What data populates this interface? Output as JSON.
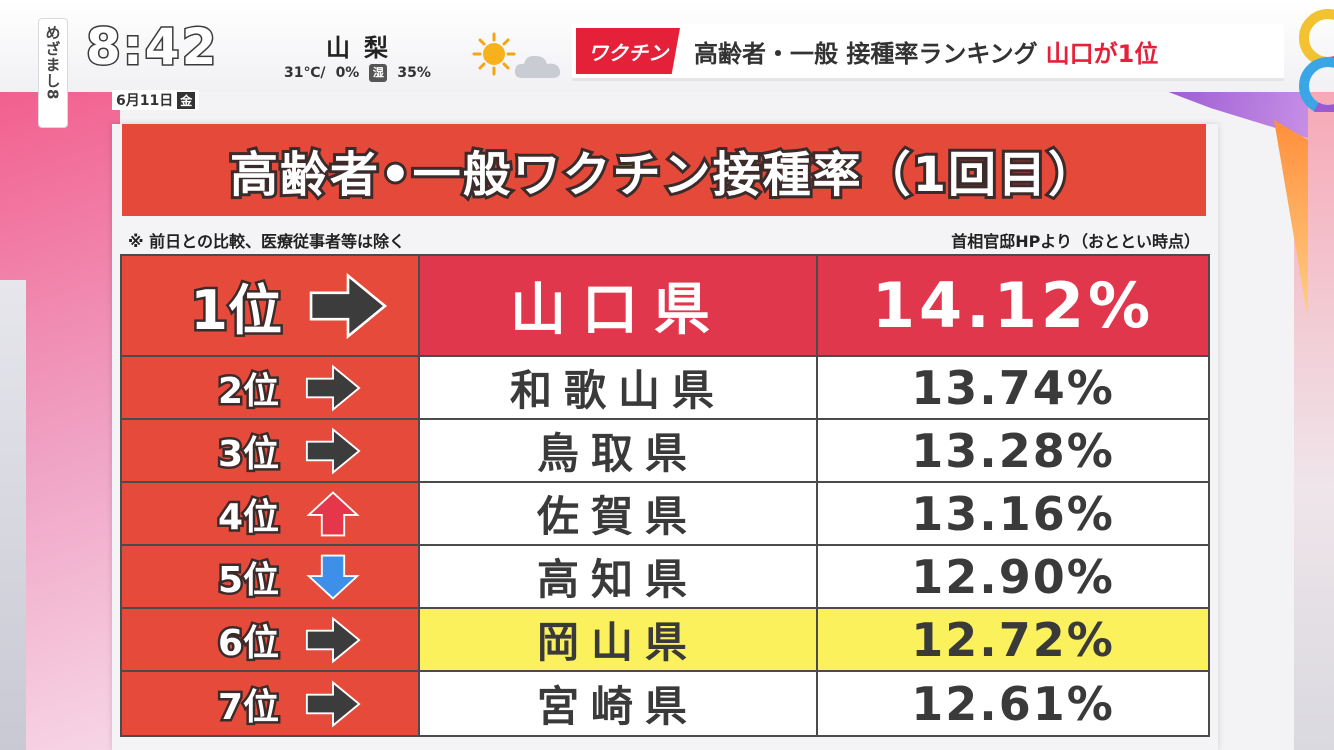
{
  "header": {
    "show_logo": "めざまし8",
    "clock": "8:42",
    "date": "6月11日",
    "weekday": "金",
    "weather": {
      "place": "山梨",
      "temp": "31℃/",
      "precip": "0%",
      "rain_label": "湿",
      "humidity": "35%",
      "icons": [
        "sun-icon",
        "cloud-icon"
      ]
    },
    "ticker": {
      "tag": "ワクチン",
      "text": "高齢者・一般 接種率ランキング",
      "accent": "山口が1位"
    }
  },
  "panel": {
    "title": "高齢者•一般ワクチン接種率（1回目）",
    "note_left": "※ 前日との比較、医療従事者等は除く",
    "note_right": "首相官邸HPより（おととい時点）"
  },
  "ranking": [
    {
      "rank": "1位",
      "trend": "same",
      "prefecture": "山口県",
      "rate": "14.12%"
    },
    {
      "rank": "2位",
      "trend": "same",
      "prefecture": "和歌山県",
      "rate": "13.74%"
    },
    {
      "rank": "3位",
      "trend": "same",
      "prefecture": "鳥取県",
      "rate": "13.28%"
    },
    {
      "rank": "4位",
      "trend": "up",
      "prefecture": "佐賀県",
      "rate": "13.16%"
    },
    {
      "rank": "5位",
      "trend": "down",
      "prefecture": "高知県",
      "rate": "12.90%"
    },
    {
      "rank": "6位",
      "trend": "same",
      "prefecture": "岡山県",
      "rate": "12.72%"
    },
    {
      "rank": "7位",
      "trend": "same",
      "prefecture": "宮崎県",
      "rate": "12.61%"
    }
  ],
  "colors": {
    "title_red": "#e5493a",
    "first_row_red": "#e1374d",
    "highlight_yellow": "#fbf15c",
    "arrow_same": "#3c3c3c",
    "arrow_up": "#e5364a",
    "arrow_down": "#3d8fe8"
  }
}
